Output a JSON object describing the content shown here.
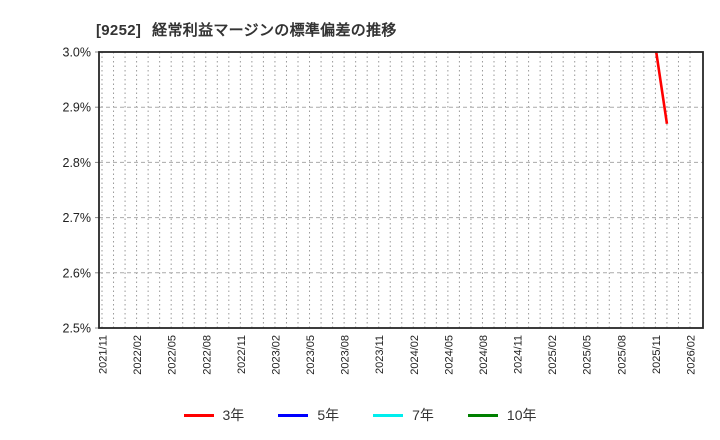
{
  "header": {
    "ticker": "[9252]",
    "title": "経常利益マージンの標準偏差の推移"
  },
  "chart_data": {
    "type": "line",
    "title": "[9252] 経常利益マージンの標準偏差の推移",
    "x_axis": {
      "start": "2021/11",
      "end": "2026/02",
      "label_interval_months": 3,
      "gridline_interval_months": 1,
      "tick_labels": [
        "2021/11",
        "2022/02",
        "2022/05",
        "2022/08",
        "2022/11",
        "2023/02",
        "2023/05",
        "2023/08",
        "2023/11",
        "2024/02",
        "2024/05",
        "2024/08",
        "2024/11",
        "2025/02",
        "2025/05",
        "2025/08",
        "2025/11",
        "2026/02"
      ]
    },
    "y_axis": {
      "min": 2.5,
      "max": 3.0,
      "unit": "%",
      "ticks": [
        {
          "value": 2.5,
          "label": "2.5%"
        },
        {
          "value": 2.6,
          "label": "2.6%"
        },
        {
          "value": 2.7,
          "label": "2.7%"
        },
        {
          "value": 2.8,
          "label": "2.8%"
        },
        {
          "value": 2.9,
          "label": "2.9%"
        },
        {
          "value": 3.0,
          "label": "3.0%"
        }
      ]
    },
    "series": [
      {
        "name": "3年",
        "color": "#ff0000",
        "points": [
          {
            "date": "2025/11",
            "value": 3.01,
            "clipped_at_ymax": true
          },
          {
            "date": "2025/12",
            "value": 2.87
          }
        ]
      },
      {
        "name": "5年",
        "color": "#0000ff",
        "points": []
      },
      {
        "name": "7年",
        "color": "#00eeee",
        "points": []
      },
      {
        "name": "10年",
        "color": "#008000",
        "points": []
      }
    ],
    "legend": {
      "position": "bottom",
      "entries": [
        "3年",
        "5年",
        "7年",
        "10年"
      ]
    },
    "grid": {
      "vertical": "dotted-monthly",
      "horizontal": "dashed-per-0.1%"
    }
  }
}
